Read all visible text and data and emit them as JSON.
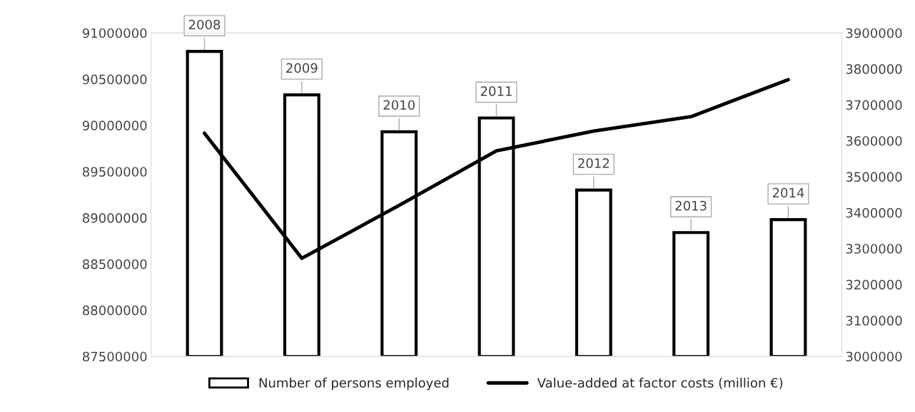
{
  "chart_data": {
    "type": "bar",
    "categories": [
      "2008",
      "2009",
      "2010",
      "2011",
      "2012",
      "2013",
      "2014"
    ],
    "series": [
      {
        "name": "Number of persons employed",
        "color": "#ffffff",
        "values": [
          90800000,
          90330000,
          89930000,
          90080000,
          89300000,
          88840000,
          88980000
        ]
      },
      {
        "name": "Value-added at factor costs (million €)",
        "type": "line",
        "axis": "y2",
        "color": "#000000",
        "values": [
          3621000,
          3273000,
          3420000,
          3572000,
          3627000,
          3667000,
          3770000
        ]
      }
    ],
    "ylim": [
      87500000,
      91000000
    ],
    "yticks": [
      87500000,
      88000000,
      88500000,
      89000000,
      89500000,
      90000000,
      90500000,
      91000000
    ],
    "y2lim": [
      3000000,
      3900000
    ],
    "y2ticks": [
      3000000,
      3100000,
      3200000,
      3300000,
      3400000,
      3500000,
      3600000,
      3700000,
      3800000,
      3900000
    ],
    "grid": false,
    "legend": "bottom",
    "marker": "none",
    "line_style": "solid"
  }
}
